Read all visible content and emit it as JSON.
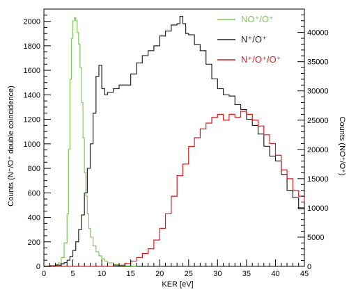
{
  "chart_data": {
    "type": "line",
    "title": "",
    "xlabel": "KER [eV]",
    "ylabel_left": "Counts (N⁺/O⁺ double coincidence)",
    "ylabel_right": "Counts (NO⁺/O⁺)",
    "xlim": [
      0,
      45
    ],
    "ylim_left": [
      0,
      2100
    ],
    "ylim_right": [
      0,
      44000
    ],
    "x_ticks": [
      0,
      5,
      10,
      15,
      20,
      25,
      30,
      35,
      40,
      45
    ],
    "y_left_ticks": [
      0,
      200,
      400,
      600,
      800,
      1000,
      1200,
      1400,
      1600,
      1800,
      2000
    ],
    "y_right_ticks": [
      0,
      5000,
      10000,
      15000,
      20000,
      25000,
      30000,
      35000,
      40000
    ],
    "grid": false,
    "legend_position": "top-right",
    "series": [
      {
        "name": "NO⁺/O⁺",
        "color": "#7ccc4f",
        "axis": "right",
        "x": [
          0,
          1,
          2,
          2.5,
          3,
          3.5,
          4,
          4.25,
          4.5,
          4.75,
          5,
          5.25,
          5.5,
          5.75,
          6,
          6.25,
          6.5,
          6.75,
          7,
          7.25,
          7.5,
          7.75,
          8,
          8.5,
          9,
          9.5,
          10,
          10.5,
          11,
          12,
          13,
          14,
          15,
          16
        ],
        "y": [
          0,
          0,
          300,
          600,
          1500,
          4000,
          9000,
          20000,
          32000,
          39000,
          42000,
          42500,
          42000,
          40000,
          38000,
          34000,
          28000,
          22000,
          16000,
          12000,
          9000,
          6500,
          5000,
          3500,
          2500,
          1800,
          1300,
          900,
          600,
          300,
          150,
          80,
          40,
          0
        ]
      },
      {
        "name": "N⁺/O⁺",
        "color": "#222222",
        "axis": "left",
        "x": [
          0,
          1,
          2,
          3,
          3.5,
          4,
          4.5,
          5,
          5.5,
          6,
          6.5,
          7,
          7.5,
          8,
          8.5,
          9,
          9.5,
          10,
          10.5,
          11,
          12,
          13,
          14,
          15,
          16,
          17,
          18,
          19,
          20,
          21,
          22,
          23,
          23.5,
          24,
          24.5,
          25,
          26,
          27,
          28,
          29,
          30,
          31,
          32,
          33,
          34,
          35,
          36,
          37,
          38,
          39,
          40,
          41,
          42,
          43,
          44,
          45
        ],
        "y": [
          0,
          5,
          10,
          20,
          30,
          50,
          80,
          130,
          200,
          300,
          420,
          600,
          800,
          1000,
          1250,
          1550,
          1640,
          1450,
          1400,
          1420,
          1450,
          1480,
          1480,
          1570,
          1660,
          1720,
          1760,
          1800,
          1880,
          1920,
          1970,
          1980,
          2040,
          1980,
          1900,
          1890,
          1810,
          1760,
          1650,
          1530,
          1450,
          1400,
          1390,
          1320,
          1280,
          1200,
          1150,
          1080,
          980,
          900,
          860,
          750,
          620,
          560,
          470,
          410
        ]
      },
      {
        "name": "N⁺/O⁺/O⁺",
        "color": "#e8191b",
        "axis": "right",
        "x": [
          0,
          5,
          10,
          12,
          14,
          15,
          16,
          17,
          18,
          19,
          20,
          21,
          22,
          23,
          24,
          25,
          26,
          27,
          28,
          29,
          30,
          31,
          32,
          33,
          34,
          35,
          36,
          37,
          38,
          39,
          40,
          41,
          42,
          43,
          44,
          45
        ],
        "y": [
          0,
          0,
          0,
          200,
          500,
          900,
          1500,
          2200,
          3000,
          4500,
          6500,
          9000,
          12000,
          15500,
          17500,
          20500,
          22000,
          23500,
          24500,
          25500,
          26000,
          25000,
          26000,
          25500,
          26500,
          26000,
          25000,
          24000,
          22500,
          21000,
          19000,
          16500,
          15000,
          13000,
          12000,
          11000
        ]
      }
    ]
  }
}
